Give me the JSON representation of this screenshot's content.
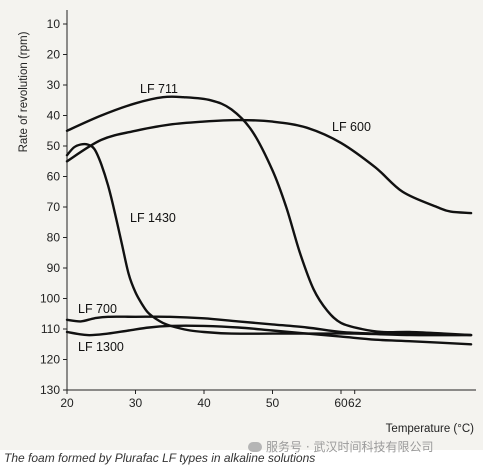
{
  "chart_data": {
    "type": "line",
    "ylabel": "Rate of revolution (rpm)",
    "xlabel": "Temperature (°C)",
    "xlim": [
      20,
      80
    ],
    "ylim": [
      10,
      130
    ],
    "y_inverted": true,
    "x_ticks": [
      20,
      30,
      40,
      50,
      60,
      62
    ],
    "y_ticks": [
      10,
      20,
      30,
      40,
      50,
      60,
      70,
      80,
      90,
      100,
      110,
      120,
      130
    ],
    "grid": false,
    "legend": "inline labels",
    "series": [
      {
        "name": "LF 711",
        "x": [
          20,
          25,
          30,
          34,
          37,
          41,
          44,
          47,
          50,
          52,
          54,
          56,
          58,
          60,
          63,
          66,
          70,
          75,
          79
        ],
        "y": [
          45,
          40,
          36,
          34,
          34,
          35,
          38,
          45,
          58,
          70,
          85,
          97,
          104,
          108,
          110,
          111,
          111,
          111.5,
          112
        ]
      },
      {
        "name": "LF 600",
        "x": [
          20,
          25,
          30,
          35,
          40,
          45,
          50,
          55,
          60,
          65,
          69,
          74,
          76,
          79
        ],
        "y": [
          55,
          48,
          45,
          43,
          42,
          41.5,
          42,
          44,
          49,
          57,
          65,
          70,
          71.5,
          72
        ]
      },
      {
        "name": "LF 1430",
        "x": [
          20,
          21,
          22,
          23,
          24,
          25,
          26,
          27,
          28,
          29,
          30,
          31,
          32,
          34,
          36,
          38,
          40,
          44,
          50,
          56,
          62,
          70,
          79
        ],
        "y": [
          53,
          50.5,
          49.5,
          49.5,
          51,
          56,
          63,
          72,
          82,
          92,
          98,
          102,
          105,
          108,
          109.5,
          110.5,
          111,
          111.5,
          111.5,
          111.5,
          111.5,
          112,
          112
        ]
      },
      {
        "name": "LF 700",
        "x": [
          20,
          22,
          24,
          26,
          30,
          35,
          40,
          45,
          50,
          55,
          60,
          65,
          70,
          79
        ],
        "y": [
          107,
          107.5,
          106.5,
          106,
          106,
          106,
          106.5,
          107.5,
          108.5,
          109.5,
          111,
          111.5,
          111.5,
          112
        ]
      },
      {
        "name": "LF 1300",
        "x": [
          20,
          23,
          26,
          29,
          32,
          35,
          40,
          45,
          50,
          55,
          60,
          65,
          70,
          79
        ],
        "y": [
          111,
          112,
          111.5,
          110.5,
          109.5,
          109,
          109,
          109.5,
          110.5,
          111.5,
          112.5,
          113.5,
          114,
          115
        ]
      }
    ]
  },
  "caption": "The foam formed by Plurafac LF types in alkaline solutions",
  "watermark": "服务号 · 武汉时间科技有限公司"
}
